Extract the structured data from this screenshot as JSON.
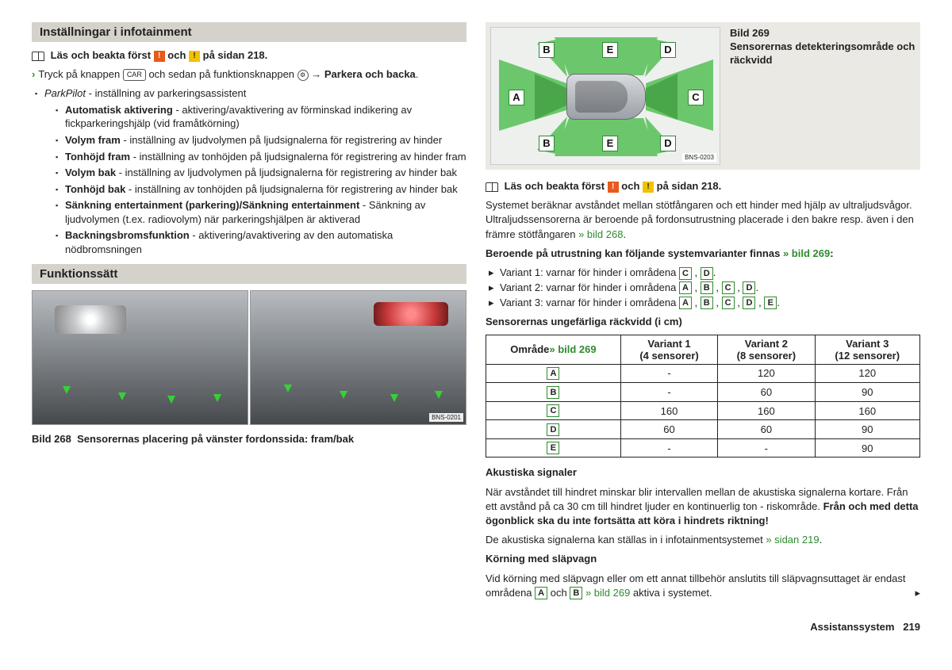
{
  "left": {
    "section1_title": "Inställningar i infotainment",
    "read_first_pre": "Läs och beakta först ",
    "read_first_mid": " och ",
    "read_first_post": " på sidan 218.",
    "press_pre": "Tryck på knappen ",
    "press_btn": "CAR",
    "press_mid": " och sedan på funktionsknappen ",
    "press_gear": "⚙",
    "press_arrow": " → ",
    "press_target": "Parkera och backa",
    "press_end": ".",
    "parkpilot_label": "ParkPilot",
    "parkpilot_desc": " - inställning av parkeringsassistent",
    "items": [
      {
        "b": "Automatisk aktivering",
        "t": " - aktivering/avaktivering av förminskad indikering av fickparkeringshjälp (vid framåtkörning)"
      },
      {
        "b": "Volym fram",
        "t": " - inställning av ljudvolymen på ljudsignalerna för registrering av hinder"
      },
      {
        "b": "Tonhöjd fram",
        "t": " - inställning av tonhöjden på ljudsignalerna för registrering av hinder fram"
      },
      {
        "b": "Volym bak",
        "t": " - inställning av ljudvolymen på ljudsignalerna för registrering av hinder bak"
      },
      {
        "b": "Tonhöjd bak",
        "t": " - inställning av tonhöjden på ljudsignalerna för registrering av hinder bak"
      },
      {
        "b": "Sänkning entertainment (parkering)/Sänkning entertainment",
        "t": " - Sänkning av ljudvolymen (t.ex. radiovolym) när parkeringshjälpen är aktiverad"
      },
      {
        "b": "Backningsbromsfunktion",
        "t": " - aktivering/avaktivering av den automatiska nödbromsningen"
      }
    ],
    "section2_title": "Funktionssätt",
    "photo_code": "BNS-0201",
    "caption_pre": "Bild 268",
    "caption_text": "Sensorernas placering på vänster fordonssida: fram/bak"
  },
  "right": {
    "diagram": {
      "labels": [
        "A",
        "B",
        "C",
        "D",
        "E"
      ],
      "img_code": "BNS-0203",
      "caption_num": "Bild 269",
      "caption_text": "Sensorernas detekteringsområde och räckvidd",
      "cone_color": "#4ab64a"
    },
    "read_first_pre": "Läs och beakta först ",
    "read_first_mid": " och ",
    "read_first_post": " på sidan 218.",
    "para1a": "Systemet beräknar avståndet mellan stötfångaren och ett hinder med hjälp av ultraljudsvågor. Ultraljudssensorerna är beroende på fordonsutrustning placerade i den bakre resp. även i den främre stötfångaren ",
    "para1_link": "» bild 268",
    "para1b": ".",
    "variants_intro_a": "Beroende på utrustning kan följande systemvarianter finnas ",
    "variants_intro_link": "» bild 269",
    "variants_intro_b": ":",
    "variants": [
      {
        "t": "Variant 1: varnar för hinder i områdena ",
        "letters": [
          "C",
          "D"
        ]
      },
      {
        "t": "Variant 2: varnar för hinder i områdena ",
        "letters": [
          "A",
          "B",
          "C",
          "D"
        ]
      },
      {
        "t": "Variant 3: varnar för hinder i områdena ",
        "letters": [
          "A",
          "B",
          "C",
          "D",
          "E"
        ]
      }
    ],
    "table_title": "Sensorernas ungefärliga räckvidd (i cm)",
    "table": {
      "head_area": "Område",
      "head_area_link": "» bild 269",
      "cols": [
        {
          "l1": "Variant 1",
          "l2": "(4 sensorer)"
        },
        {
          "l1": "Variant 2",
          "l2": "(8 sensorer)"
        },
        {
          "l1": "Variant 3",
          "l2": "(12 sensorer)"
        }
      ],
      "rows": [
        {
          "z": "A",
          "v": [
            "-",
            "120",
            "120"
          ]
        },
        {
          "z": "B",
          "v": [
            "-",
            "60",
            "90"
          ]
        },
        {
          "z": "C",
          "v": [
            "160",
            "160",
            "160"
          ]
        },
        {
          "z": "D",
          "v": [
            "60",
            "60",
            "90"
          ]
        },
        {
          "z": "E",
          "v": [
            "-",
            "-",
            "90"
          ]
        }
      ]
    },
    "akust_head": "Akustiska signaler",
    "akust_p1": "När avståndet till hindret minskar blir intervallen mellan de akustiska signalerna kortare. Från ett avstånd på ca 30 cm till hindret ljuder en kontinuerlig ton - riskområde. ",
    "akust_bold": "Från och med detta ögonblick ska du inte fortsätta att köra i hindrets riktning!",
    "akust_p2a": "De akustiska signalerna kan ställas in i infotainmentsystemet ",
    "akust_p2_link": "» sidan 219",
    "akust_p2b": ".",
    "trailer_head": "Körning med släpvagn",
    "trailer_p_a": "Vid körning med släpvagn eller om ett annat tillbehör anslutits till släpvagnsuttaget är endast områdena ",
    "trailer_mid": " och ",
    "trailer_link": " » bild 269",
    "trailer_end": " aktiva i systemet.",
    "trailer_letters": [
      "A",
      "B"
    ]
  },
  "footer": {
    "section": "Assistanssystem",
    "page": "219"
  },
  "colors": {
    "green": "#2e8b2e",
    "orange": "#e85a1a",
    "yellow": "#f2c200"
  }
}
